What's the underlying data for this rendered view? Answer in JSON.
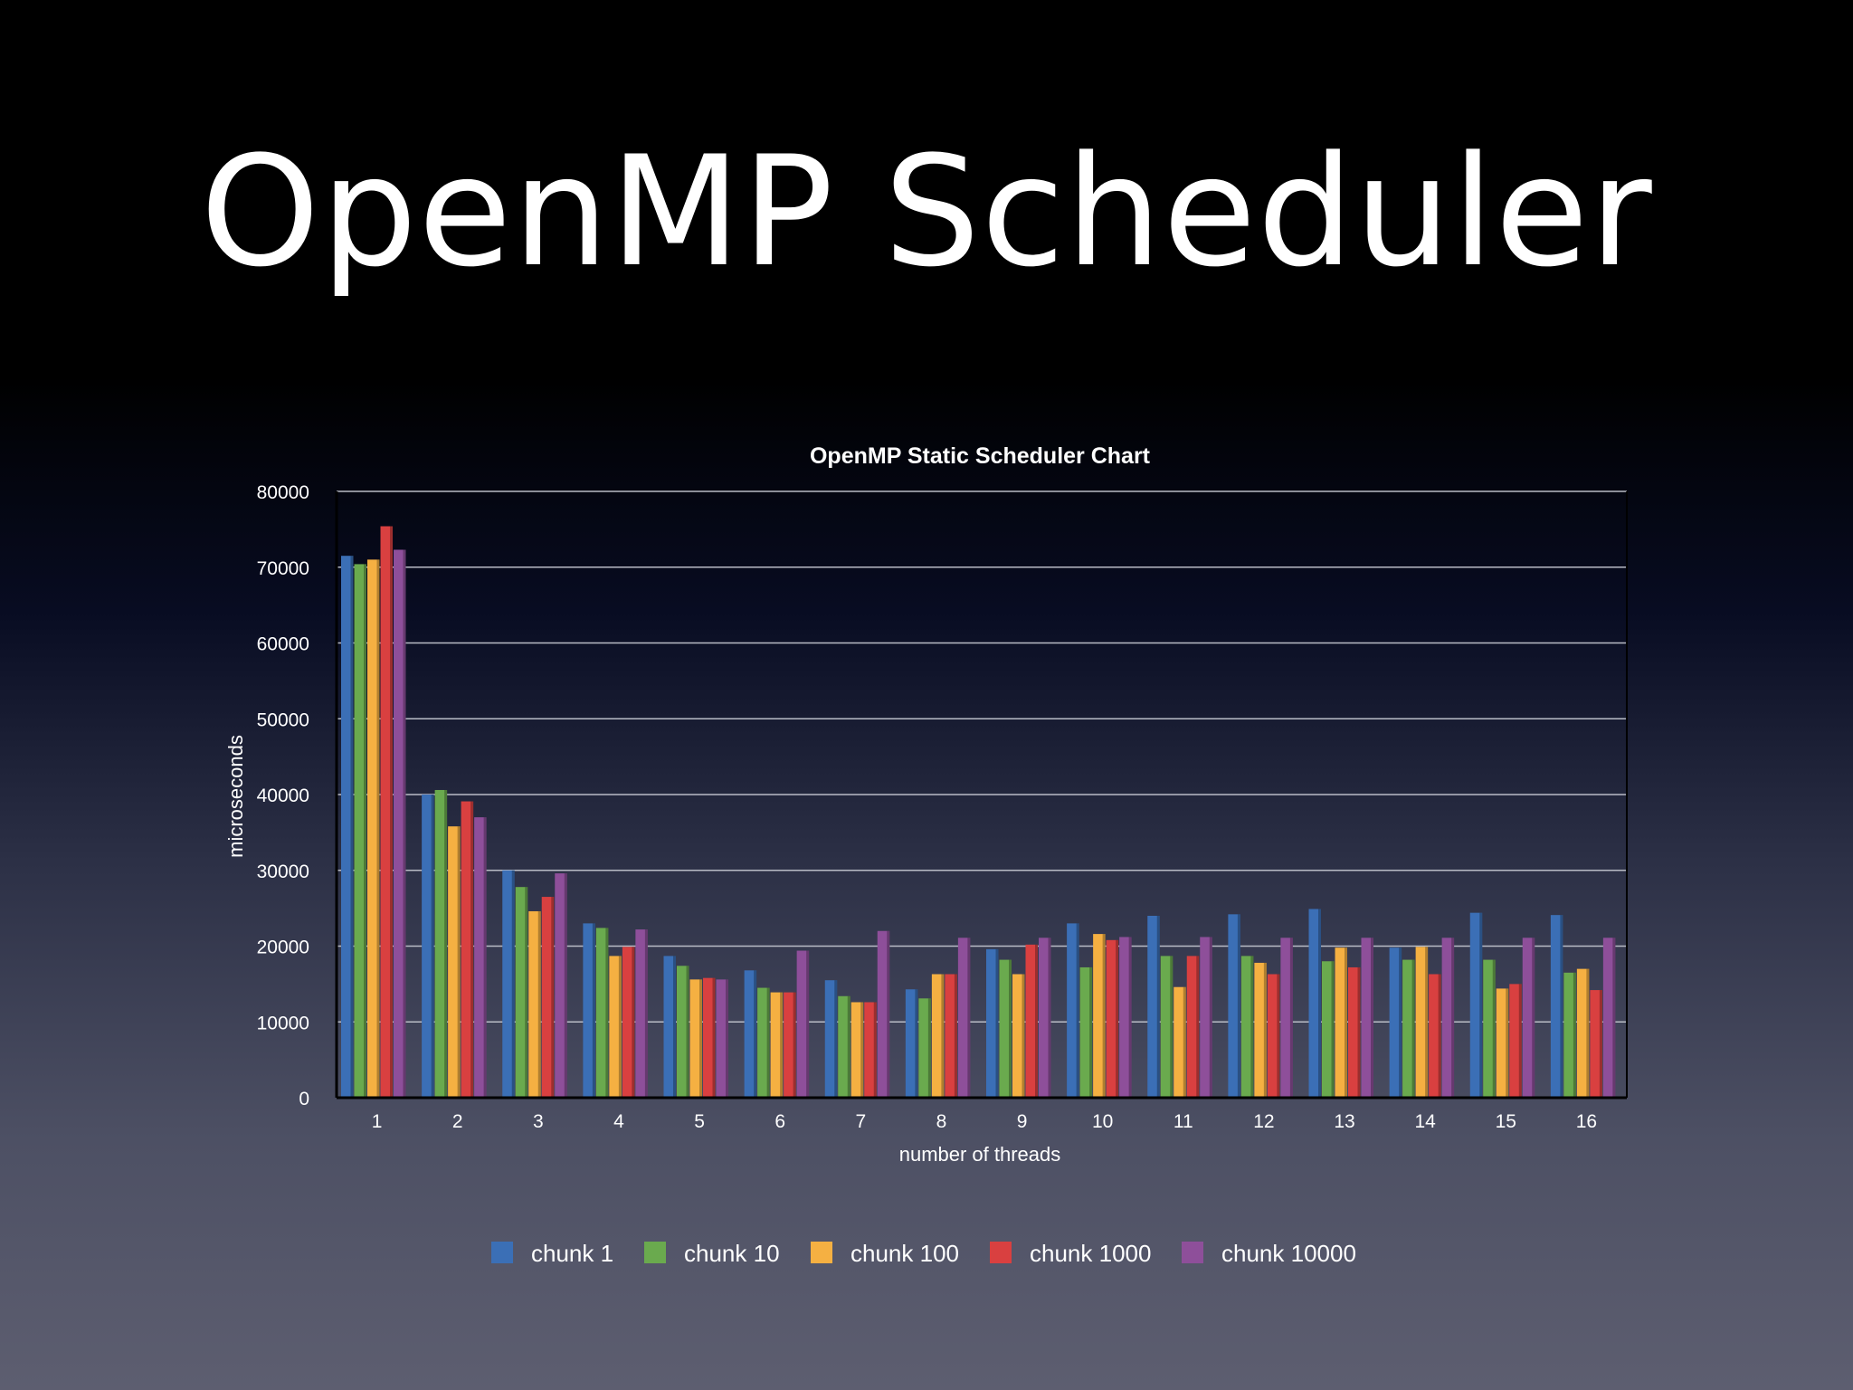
{
  "slide": {
    "title": "OpenMP Scheduler"
  },
  "chart_data": {
    "type": "bar",
    "title": "OpenMP Static Scheduler Chart",
    "xlabel": "number of threads",
    "ylabel": "microseconds",
    "ylim": [
      0,
      80000
    ],
    "yticks": [
      0,
      10000,
      20000,
      30000,
      40000,
      50000,
      60000,
      70000,
      80000
    ],
    "grid": true,
    "legend_position": "bottom",
    "categories": [
      "1",
      "2",
      "3",
      "4",
      "5",
      "6",
      "7",
      "8",
      "9",
      "10",
      "11",
      "12",
      "13",
      "14",
      "15",
      "16"
    ],
    "series": [
      {
        "name": "chunk 1",
        "color": "#3b6fb6",
        "values": [
          71500,
          40000,
          30000,
          23000,
          18700,
          16800,
          15500,
          14300,
          19600,
          23000,
          24000,
          24200,
          24900,
          19800,
          24400,
          24100
        ]
      },
      {
        "name": "chunk 10",
        "color": "#6aaa4e",
        "values": [
          70400,
          40600,
          27800,
          22400,
          17400,
          14500,
          13400,
          13100,
          18200,
          17200,
          18700,
          18700,
          18000,
          18200,
          18200,
          16500
        ]
      },
      {
        "name": "chunk 100",
        "color": "#f5b042",
        "values": [
          71000,
          35800,
          24600,
          18700,
          15600,
          13900,
          12600,
          16300,
          16300,
          21600,
          14600,
          17800,
          19800,
          19900,
          14400,
          17000
        ]
      },
      {
        "name": "chunk 1000",
        "color": "#d94040",
        "values": [
          75400,
          39100,
          26500,
          19900,
          15800,
          13900,
          12600,
          16300,
          20200,
          20800,
          18700,
          16300,
          17200,
          16300,
          15000,
          14200
        ]
      },
      {
        "name": "chunk 10000",
        "color": "#8e4f9a",
        "values": [
          72300,
          37000,
          29600,
          22200,
          15600,
          19400,
          22000,
          21100,
          21100,
          21200,
          21200,
          21100,
          21100,
          21100,
          21100,
          21100
        ]
      }
    ]
  }
}
